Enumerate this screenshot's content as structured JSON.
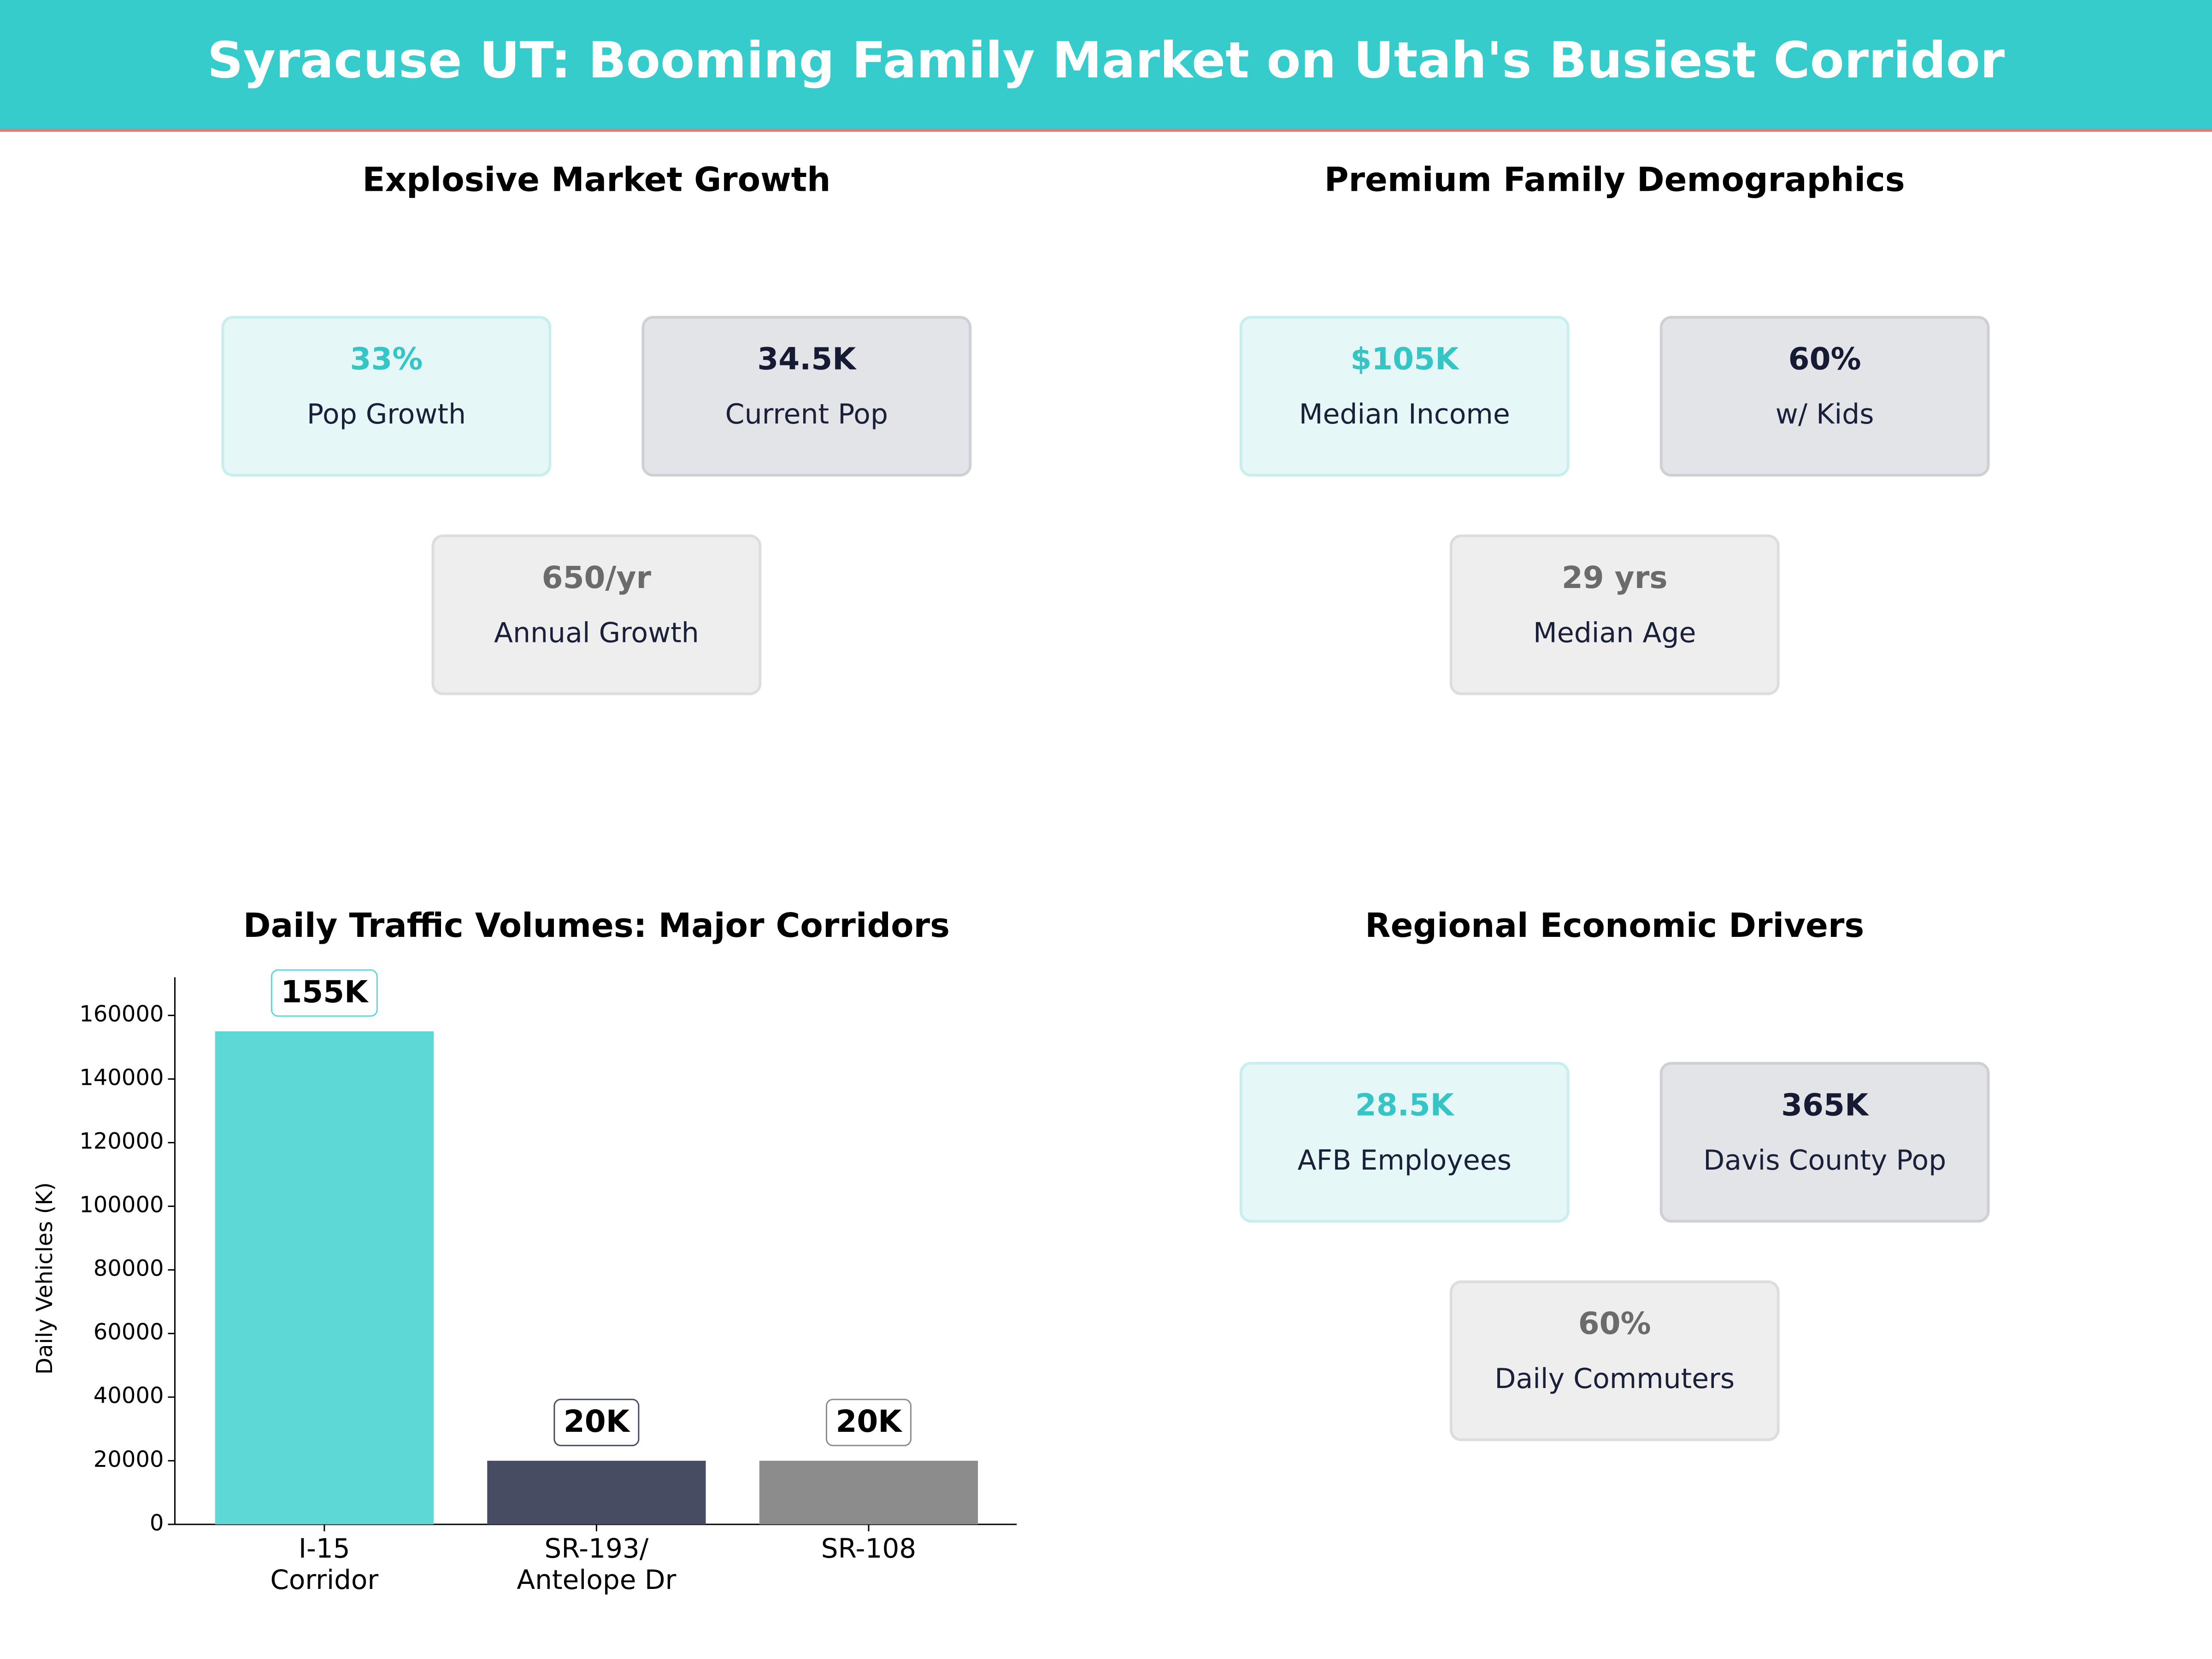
{
  "header": {
    "title": "Syracuse UT: Booming Family Market on Utah's Busiest Corridor"
  },
  "panels": [
    {
      "title": "Explosive Market Growth",
      "cards": [
        {
          "value": "33%",
          "label": "Pop Growth"
        },
        {
          "value": "34.5K",
          "label": "Current Pop"
        },
        {
          "value": "650/yr",
          "label": "Annual Growth"
        }
      ]
    },
    {
      "title": "Premium Family Demographics",
      "cards": [
        {
          "value": "$105K",
          "label": "Median Income"
        },
        {
          "value": "60%",
          "label": "w/ Kids"
        },
        {
          "value": "29 yrs",
          "label": "Median Age"
        }
      ]
    },
    {
      "title": "Regional Economic Drivers",
      "cards": [
        {
          "value": "28.5K",
          "label": "AFB Employees"
        },
        {
          "value": "365K",
          "label": "Davis County Pop"
        },
        {
          "value": "60%",
          "label": "Daily Commuters"
        }
      ]
    }
  ],
  "chart_data": {
    "type": "bar",
    "title": "Daily Traffic Volumes: Major Corridors",
    "y_label": "Daily Vehicles (K)",
    "categories": [
      "I-15\nCorridor",
      "SR-193/\nAntelope Dr",
      "SR-108"
    ],
    "values": [
      155000,
      20000,
      20000
    ],
    "value_labels": [
      "155K",
      "20K",
      "20K"
    ],
    "colors": [
      "#5ed8d6",
      "#474c63",
      "#8c8c8c"
    ],
    "ylim": [
      0,
      172000
    ],
    "yticks": [
      0,
      20000,
      40000,
      60000,
      80000,
      100000,
      120000,
      140000,
      160000
    ]
  }
}
